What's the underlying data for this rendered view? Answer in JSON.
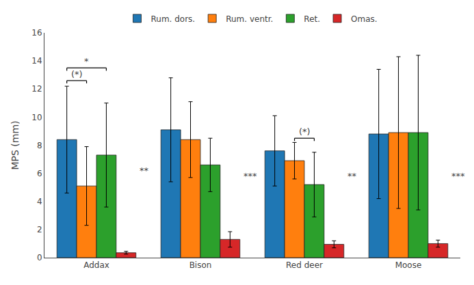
{
  "chart_data": {
    "type": "bar",
    "categories": [
      "Addax",
      "Bison",
      "Red deer",
      "Moose"
    ],
    "series": [
      {
        "name": "Rum. dors.",
        "values": [
          8.4,
          9.1,
          7.6,
          8.8
        ],
        "errors": [
          3.8,
          3.7,
          2.5,
          4.6
        ]
      },
      {
        "name": "Rum. ventr.",
        "values": [
          5.1,
          8.4,
          6.9,
          8.9
        ],
        "errors": [
          2.8,
          2.7,
          1.3,
          5.4
        ]
      },
      {
        "name": "Ret.",
        "values": [
          7.3,
          6.6,
          5.2,
          8.9
        ],
        "errors": [
          3.7,
          1.9,
          2.3,
          5.5
        ]
      },
      {
        "name": "Omas.",
        "values": [
          0.35,
          1.3,
          0.95,
          1.0
        ],
        "errors": [
          0.1,
          0.55,
          0.25,
          0.25
        ]
      }
    ],
    "ylabel": "MPS (mm)",
    "ylim": [
      0,
      16
    ],
    "yticks": [
      0,
      2,
      4,
      6,
      8,
      10,
      12,
      14,
      16
    ],
    "grid": false,
    "legend": "top",
    "annotations": [
      {
        "text": "*",
        "category": "Addax",
        "from": "Rum. dors.",
        "to": "Ret.",
        "y": 13.5
      },
      {
        "text": "(*)",
        "category": "Addax",
        "from": "Rum. dors.",
        "to": "Rum. ventr.",
        "y": 12.6
      },
      {
        "text": "**",
        "category": "Addax",
        "beside": "Omas.",
        "y": 6.2
      },
      {
        "text": "***",
        "category": "Bison",
        "beside": "Omas.",
        "y": 5.8
      },
      {
        "text": "(*)",
        "category": "Red deer",
        "from": "Rum. ventr.",
        "to": "Ret.",
        "y": 8.5
      },
      {
        "text": "**",
        "category": "Red deer",
        "beside": "Omas.",
        "y": 5.8
      },
      {
        "text": "***",
        "category": "Moose",
        "beside": "Omas.",
        "y": 5.8
      }
    ]
  }
}
